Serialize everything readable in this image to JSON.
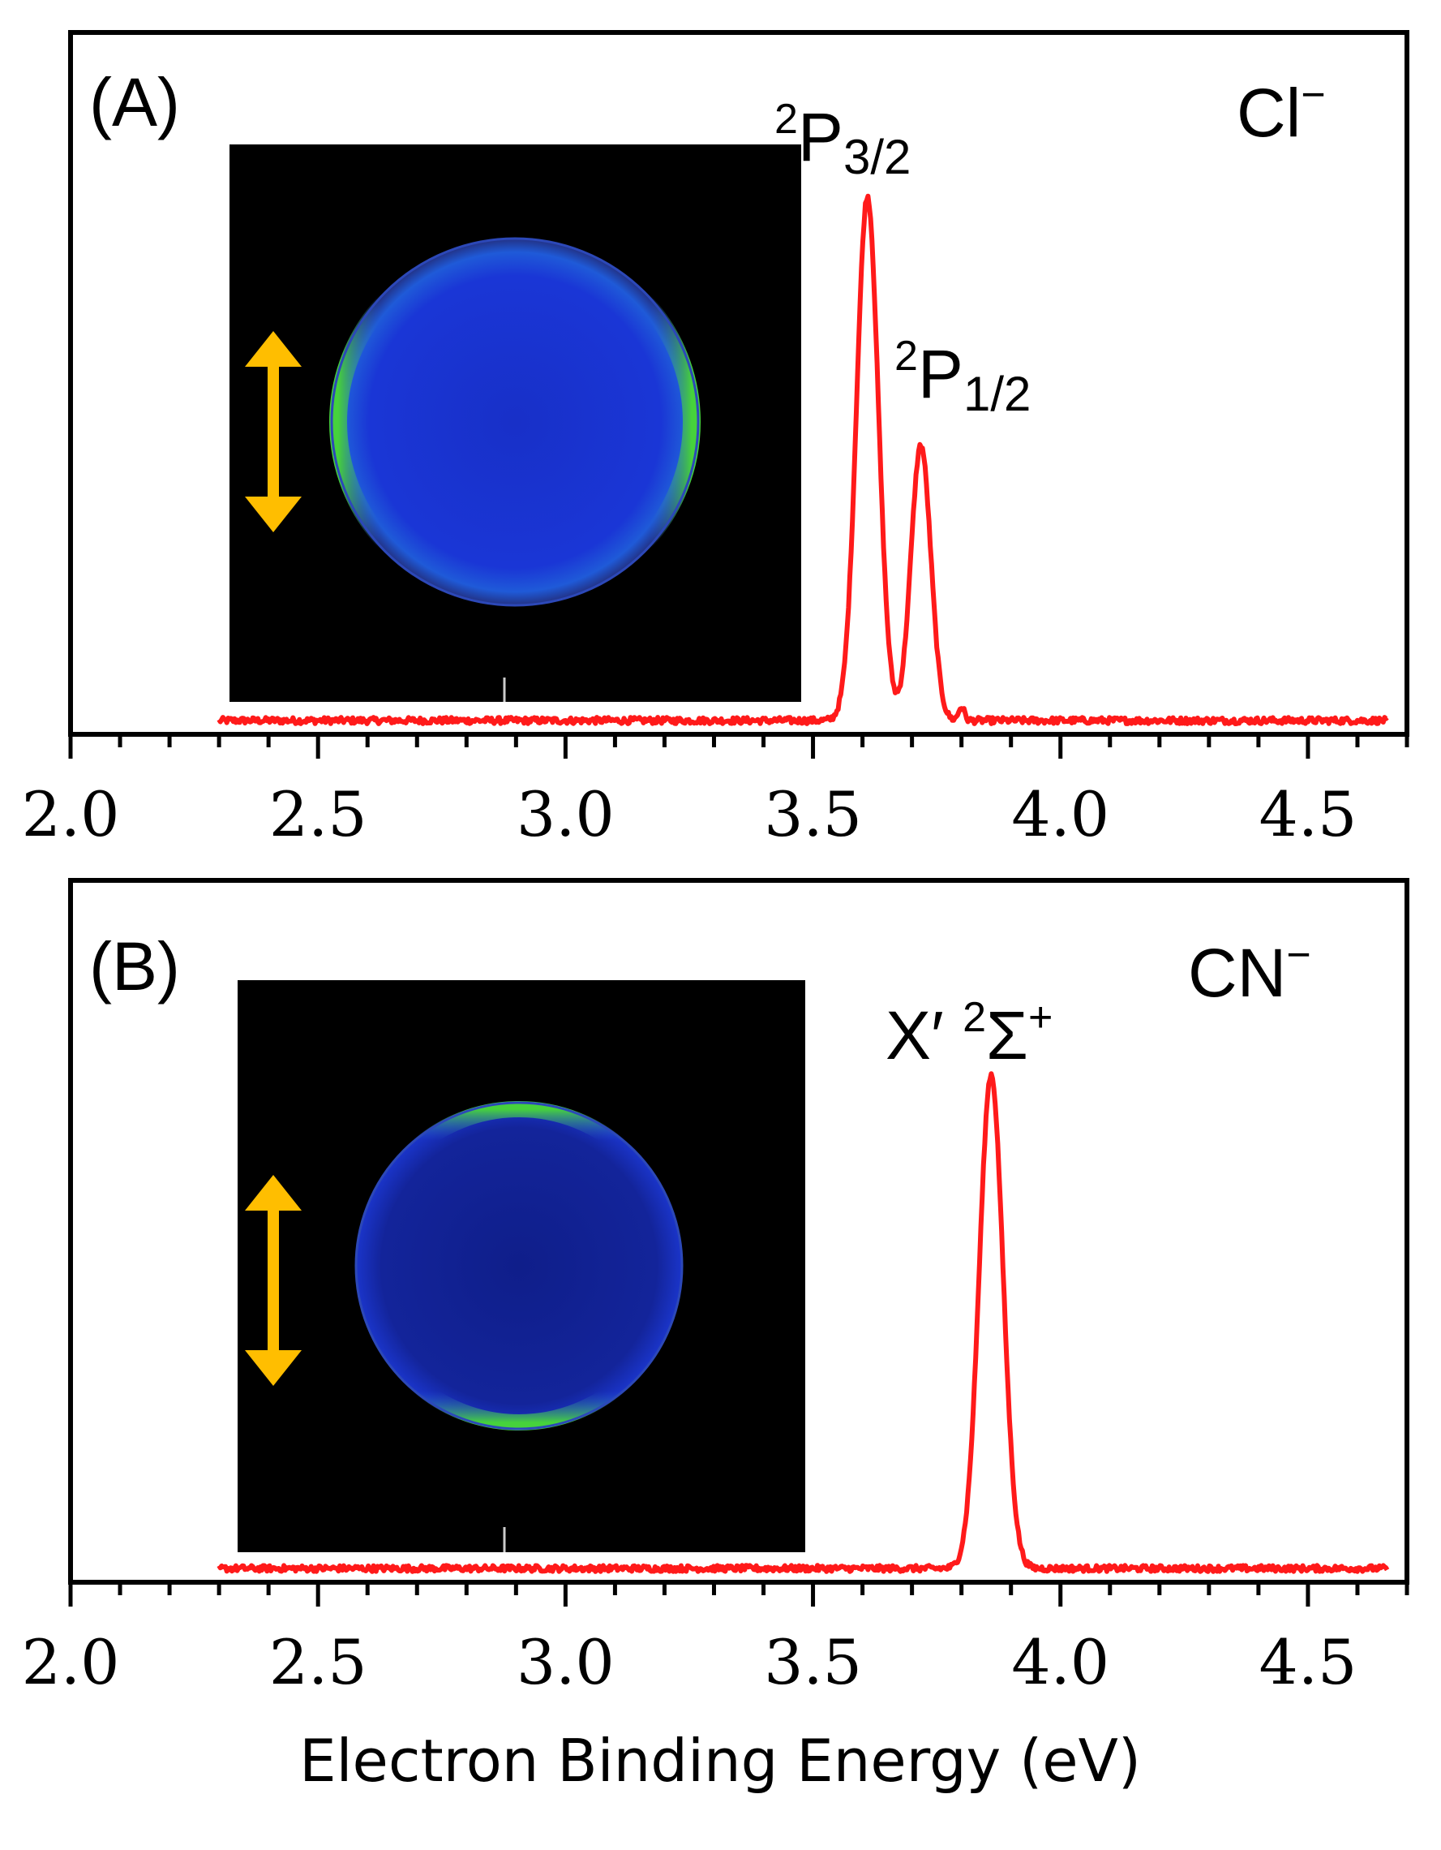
{
  "colors": {
    "spectrum": "#ff1a1a",
    "arrow": "#ffbe00",
    "inset_background": "#000000",
    "detector_disk": "#1a2fd8",
    "ring_hot": "#32c832"
  },
  "chart_data": [
    {
      "type": "line",
      "panel_label": "(A)",
      "species": {
        "base": "Cl",
        "charge": "−"
      },
      "peak_labels": [
        {
          "pre": "2",
          "main": "P",
          "sub": "3/2",
          "energy": 3.61
        },
        {
          "pre": "2",
          "main": "P",
          "sub": "1/2",
          "energy": 3.72
        }
      ],
      "xlim": [
        2.0,
        4.7
      ],
      "ylim": [
        0,
        1.0
      ],
      "xticks": [
        "2.0",
        "2.5",
        "3.0",
        "3.5",
        "4.0",
        "4.5"
      ],
      "xtick_values": [
        2.0,
        2.5,
        3.0,
        3.5,
        4.0,
        4.5
      ],
      "minor_step": 0.1,
      "x_start": 2.3,
      "x_end": 4.66,
      "baseline": 0.025,
      "peaks": [
        {
          "center": 3.61,
          "height": 0.98,
          "width": 0.022
        },
        {
          "center": 3.718,
          "height": 0.515,
          "width": 0.02
        },
        {
          "center": 3.8,
          "height": 0.025,
          "width": 0.006
        }
      ],
      "image_inset": {
        "anisotropy": "perpendicular",
        "polarization": "vertical"
      }
    },
    {
      "type": "line",
      "panel_label": "(B)",
      "species": {
        "base": "CN",
        "charge": "−"
      },
      "peak_labels": [
        {
          "pre": "X′ ",
          "main": "",
          "sup": "2",
          "sym": "Σ",
          "charge": "+",
          "energy": 3.86
        }
      ],
      "xlim": [
        2.0,
        4.7
      ],
      "ylim": [
        0,
        1.0
      ],
      "xticks": [
        "2.0",
        "2.5",
        "3.0",
        "3.5",
        "4.0",
        "4.5"
      ],
      "xtick_values": [
        2.0,
        2.5,
        3.0,
        3.5,
        4.0,
        4.5
      ],
      "minor_step": 0.1,
      "x_start": 2.3,
      "x_end": 4.66,
      "baseline": 0.025,
      "peaks": [
        {
          "center": 3.86,
          "height": 0.965,
          "width": 0.024
        }
      ],
      "image_inset": {
        "anisotropy": "parallel",
        "polarization": "vertical"
      }
    }
  ],
  "xlabel": "Electron Binding Energy (eV)"
}
